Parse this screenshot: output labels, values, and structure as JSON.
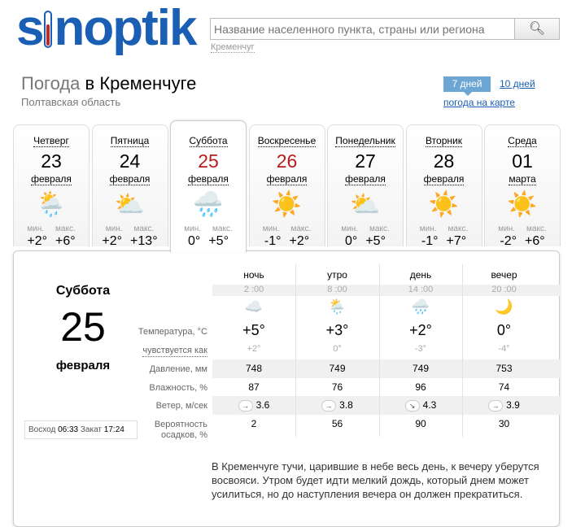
{
  "header": {
    "logo": "sinoptik",
    "search_placeholder": "Название населенного пункта, страны или региона",
    "search_icon": "magnifier-icon",
    "recent_city": "Кременчуг"
  },
  "page": {
    "title_prefix": "Погода",
    "title_city": "в Кременчуге",
    "region": "Полтавская область",
    "tab_7": "7 дней",
    "tab_10": "10 дней",
    "map_link": "погода на карте"
  },
  "labels": {
    "min": "мин.",
    "max": "макс."
  },
  "days": [
    {
      "name": "Четверг",
      "date": "23",
      "month": "февраля",
      "icon": "sun-cloud-rain-icon",
      "min": "+2°",
      "max": "+6°"
    },
    {
      "name": "Пятница",
      "date": "24",
      "month": "февраля",
      "icon": "sun-cloud-icon",
      "min": "+2°",
      "max": "+13°"
    },
    {
      "name": "Суббота",
      "date": "25",
      "month": "февраля",
      "icon": "cloud-rain-icon",
      "min": "0°",
      "max": "+5°",
      "selected": true,
      "weekend": true
    },
    {
      "name": "Воскресенье",
      "date": "26",
      "month": "февраля",
      "icon": "sun-icon",
      "min": "-1°",
      "max": "+2°",
      "weekend": true
    },
    {
      "name": "Понедельник",
      "date": "27",
      "month": "февраля",
      "icon": "sun-cloud-icon",
      "min": "0°",
      "max": "+5°"
    },
    {
      "name": "Вторник",
      "date": "28",
      "month": "февраля",
      "icon": "sun-icon",
      "min": "-1°",
      "max": "+7°"
    },
    {
      "name": "Среда",
      "date": "01",
      "month": "марта",
      "icon": "sun-icon",
      "min": "-2°",
      "max": "+6°"
    }
  ],
  "detail": {
    "day": "Суббота",
    "date": "25",
    "month": "февраля",
    "sunrise_label": "Восход",
    "sunrise": "06:33",
    "sunset_label": "Закат",
    "sunset": "17:24",
    "row_labels": {
      "temp": "Температура, °C",
      "feels": "чувствуется как",
      "pressure": "Давление, мм",
      "humidity": "Влажность, %",
      "wind": "Ветер, м/сек",
      "precip1": "Вероятность",
      "precip2": "осадков, %"
    },
    "periods": [
      {
        "name": "ночь",
        "time": "2 :00",
        "icon": "moon-cloud-icon",
        "temp": "+5°",
        "feels": "+2°",
        "pressure": "748",
        "humidity": "87",
        "wind_dir": "→",
        "wind": "3.6",
        "precip": "2"
      },
      {
        "name": "утро",
        "time": "8 :00",
        "icon": "cloud-light-rain-icon",
        "temp": "+3°",
        "feels": "0°",
        "pressure": "749",
        "humidity": "76",
        "wind_dir": "→",
        "wind": "3.8",
        "precip": "56"
      },
      {
        "name": "день",
        "time": "14 :00",
        "icon": "cloud-rain-icon",
        "temp": "+2°",
        "feels": "-3°",
        "pressure": "749",
        "humidity": "96",
        "wind_dir": "↘",
        "wind": "4.3",
        "precip": "90"
      },
      {
        "name": "вечер",
        "time": "20 :00",
        "icon": "moon-icon",
        "temp": "0°",
        "feels": "-4°",
        "pressure": "753",
        "humidity": "74",
        "wind_dir": "→",
        "wind": "3.9",
        "precip": "30"
      }
    ],
    "description": "В Кременчуге тучи, царившие в небе весь день, к вечеру уберутся восвояси. Утром будет идти мелкий дождь, который днем может усилиться, но до наступления вечера он должен прекратиться."
  },
  "colors": {
    "brand": "#1a5fb4",
    "weekend": "#b71c1c",
    "tab_active": "#6ea6d3"
  }
}
